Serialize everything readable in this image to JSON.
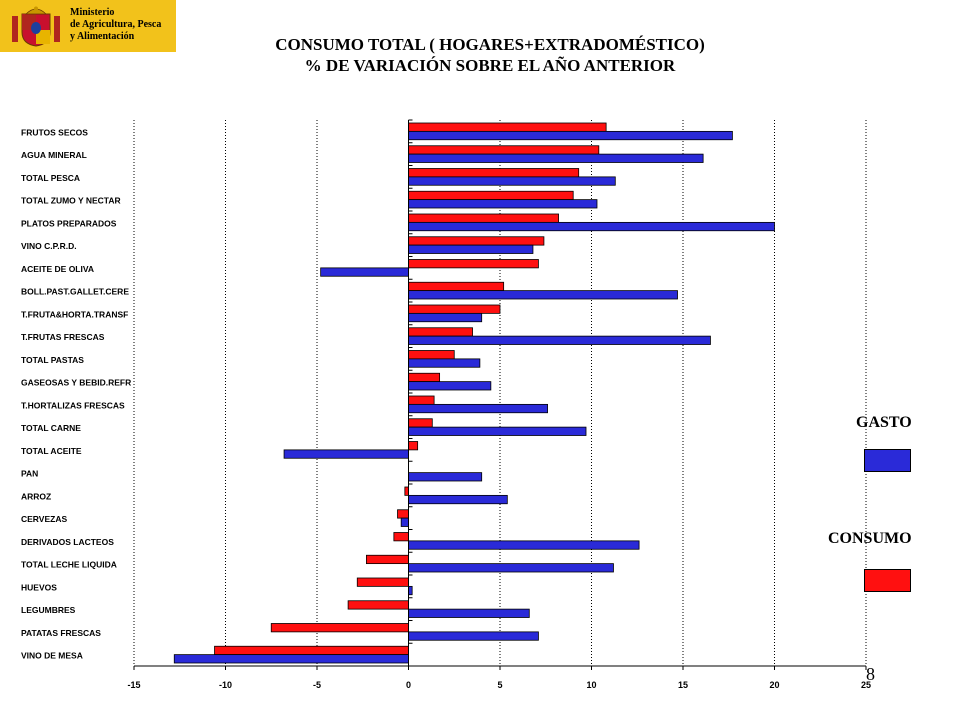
{
  "header": {
    "ministry_lines": [
      "Ministerio",
      "de Agricultura, Pesca",
      "y Alimentación"
    ],
    "title_line1": "CONSUMO TOTAL ( HOGARES+EXTRADOMÉSTICO)",
    "title_line2": "% DE VARIACIÓN SOBRE EL AÑO ANTERIOR"
  },
  "legend": {
    "gasto_label": "GASTO",
    "consumo_label": "CONSUMO"
  },
  "page_number": "8",
  "colors": {
    "gasto": "#2a2ad8",
    "consumo": "#ff1010",
    "logo_bg": "#f2c21b"
  },
  "chart_data": {
    "type": "bar",
    "orientation": "horizontal",
    "categories": [
      "FRUTOS SECOS",
      "AGUA MINERAL",
      "TOTAL PESCA",
      "TOTAL ZUMO Y NECTAR",
      "PLATOS PREPARADOS",
      "VINO C.P.R.D.",
      "ACEITE DE OLIVA",
      "BOLL.PAST.GALLET.CERE",
      "T.FRUTA&HORTA.TRANSF",
      "T.FRUTAS FRESCAS",
      "TOTAL PASTAS",
      "GASEOSAS  Y BEBID.REFR",
      "T.HORTALIZAS FRESCAS",
      "TOTAL CARNE",
      "TOTAL ACEITE",
      "PAN",
      "ARROZ",
      "CERVEZAS",
      "DERIVADOS LACTEOS",
      "TOTAL LECHE LIQUIDA",
      "HUEVOS",
      "LEGUMBRES",
      "PATATAS FRESCAS",
      "VINO DE MESA"
    ],
    "series": [
      {
        "name": "CONSUMO",
        "values": [
          10.8,
          10.4,
          9.3,
          9.0,
          8.2,
          7.4,
          7.1,
          5.2,
          5.0,
          3.5,
          2.5,
          1.7,
          1.4,
          1.3,
          0.5,
          0,
          -0.2,
          -0.6,
          -0.8,
          -2.3,
          -2.8,
          -3.3,
          -7.5,
          -10.6
        ]
      },
      {
        "name": "GASTO",
        "values": [
          17.7,
          16.1,
          11.3,
          10.3,
          20.0,
          6.8,
          -4.8,
          14.7,
          4.0,
          16.5,
          3.9,
          4.5,
          7.6,
          9.7,
          -6.8,
          4.0,
          5.4,
          -0.4,
          12.6,
          11.2,
          0.2,
          6.6,
          7.1,
          -12.8
        ]
      }
    ],
    "xlim": [
      -15,
      25
    ],
    "xticks": [
      "-15",
      "-10",
      "-5",
      "0",
      "5",
      "10",
      "15",
      "20",
      "25"
    ],
    "grid": "vertical dotted"
  }
}
